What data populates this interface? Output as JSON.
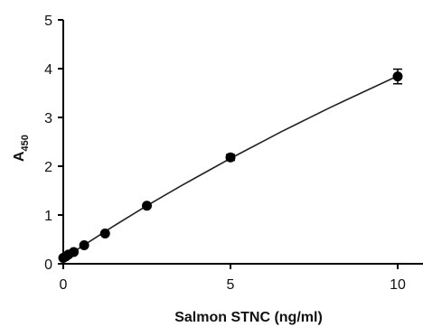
{
  "chart_data": {
    "type": "scatter",
    "title": "",
    "xlabel": "Salmon STNC (ng/ml)",
    "ylabel": "A",
    "ylabel_subscript": "450",
    "xlim": [
      0,
      10
    ],
    "ylim": [
      0,
      5
    ],
    "x_ticks": [
      0,
      5,
      10
    ],
    "x_tick_labels": [
      "0",
      "5",
      "10"
    ],
    "y_ticks": [
      0,
      1,
      2,
      3,
      4,
      5
    ],
    "y_tick_labels": [
      "0",
      "1",
      "2",
      "3",
      "4",
      "5"
    ],
    "grid": false,
    "legend": "none",
    "point_color": "#000000",
    "line_color": "#222222",
    "points": [
      {
        "x": 0.0,
        "y": 0.12,
        "err": 0.0
      },
      {
        "x": 0.078,
        "y": 0.15,
        "err": 0.0
      },
      {
        "x": 0.156,
        "y": 0.19,
        "err": 0.0
      },
      {
        "x": 0.3125,
        "y": 0.24,
        "err": 0.0
      },
      {
        "x": 0.625,
        "y": 0.38,
        "err": 0.0
      },
      {
        "x": 1.25,
        "y": 0.62,
        "err": 0.0
      },
      {
        "x": 2.5,
        "y": 1.19,
        "err": 0.0
      },
      {
        "x": 5.0,
        "y": 2.18,
        "err": 0.06
      },
      {
        "x": 10.0,
        "y": 3.84,
        "err": 0.15
      }
    ],
    "fit_curve": {
      "x": [
        0,
        0.5,
        1,
        1.5,
        2,
        2.5,
        3,
        3.5,
        4,
        4.5,
        5,
        5.5,
        6,
        6.5,
        7,
        7.5,
        8,
        8.5,
        9,
        9.5,
        10
      ],
      "y": [
        0.1,
        0.33,
        0.55,
        0.77,
        0.98,
        1.19,
        1.39,
        1.59,
        1.78,
        1.97,
        2.16,
        2.34,
        2.52,
        2.7,
        2.87,
        3.04,
        3.21,
        3.37,
        3.53,
        3.69,
        3.85
      ]
    }
  }
}
